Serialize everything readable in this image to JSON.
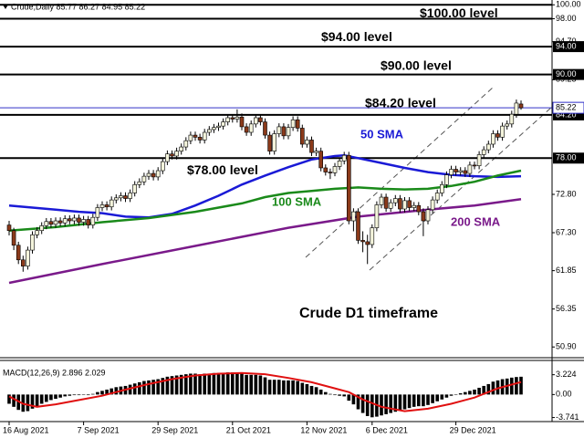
{
  "chart_data": {
    "type": "candlestick",
    "title": "Crude,Daily 85.77 86.27 84.95 85.22",
    "ylim": [
      49.36,
      100.69
    ],
    "yticks": [
      {
        "value": 100,
        "label": "100.00"
      },
      {
        "value": 98,
        "label": "98.00"
      },
      {
        "value": 94.7,
        "label": "94.70"
      },
      {
        "value": 89.25,
        "label": "89.25"
      },
      {
        "value": 72.8,
        "label": "72.80"
      },
      {
        "value": 67.3,
        "label": "67.30"
      },
      {
        "value": 61.85,
        "label": "61.85"
      },
      {
        "value": 56.35,
        "label": "56.35"
      },
      {
        "value": 50.9,
        "label": "50.90"
      }
    ],
    "xticks": [
      {
        "value": 0,
        "label": "16 Aug 2021"
      },
      {
        "value": 16,
        "label": "7 Sep 2021"
      },
      {
        "value": 32,
        "label": "29 Sep 2021"
      },
      {
        "value": 48,
        "label": "21 Oct 2021"
      },
      {
        "value": 64,
        "label": "12 Nov 2021"
      },
      {
        "value": 78,
        "label": "6 Dec 2021"
      },
      {
        "value": 96,
        "label": "29 Dec 2021"
      }
    ],
    "up_color": "#f4f4dc",
    "down_color": "#8b3a1a",
    "ohlc": [
      [
        68.4,
        69.0,
        66.9,
        67.6
      ],
      [
        67.6,
        68.0,
        64.8,
        65.5
      ],
      [
        65.5,
        66.0,
        62.8,
        63.4
      ],
      [
        63.4,
        64.0,
        61.7,
        62.5
      ],
      [
        62.5,
        65.3,
        62.0,
        64.8
      ],
      [
        64.8,
        67.5,
        64.3,
        67.0
      ],
      [
        67.0,
        68.1,
        66.5,
        67.6
      ],
      [
        67.6,
        68.8,
        67.1,
        68.3
      ],
      [
        68.3,
        69.4,
        67.8,
        68.9
      ],
      [
        68.9,
        69.4,
        68.0,
        68.5
      ],
      [
        68.5,
        69.5,
        68.0,
        69.0
      ],
      [
        69.0,
        69.5,
        68.2,
        68.7
      ],
      [
        68.7,
        69.8,
        68.2,
        69.3
      ],
      [
        69.3,
        69.8,
        68.5,
        69.0
      ],
      [
        69.0,
        69.9,
        68.5,
        69.4
      ],
      [
        69.4,
        69.9,
        68.3,
        68.8
      ],
      [
        68.8,
        69.7,
        68.3,
        69.2
      ],
      [
        69.2,
        69.7,
        67.9,
        68.4
      ],
      [
        68.4,
        70.0,
        67.9,
        69.5
      ],
      [
        69.5,
        71.4,
        69.0,
        70.9
      ],
      [
        70.9,
        71.8,
        70.4,
        71.3
      ],
      [
        71.3,
        71.8,
        70.5,
        71.0
      ],
      [
        71.0,
        72.5,
        70.5,
        72.0
      ],
      [
        72.0,
        72.8,
        71.5,
        72.3
      ],
      [
        72.3,
        73.1,
        71.8,
        72.6
      ],
      [
        72.6,
        73.1,
        71.7,
        72.2
      ],
      [
        72.2,
        73.5,
        71.7,
        73.0
      ],
      [
        73.0,
        74.7,
        72.5,
        74.2
      ],
      [
        74.2,
        75.1,
        73.7,
        74.6
      ],
      [
        74.6,
        75.9,
        74.1,
        75.4
      ],
      [
        75.4,
        76.3,
        74.9,
        75.8
      ],
      [
        75.8,
        76.3,
        74.8,
        75.3
      ],
      [
        75.3,
        76.7,
        74.8,
        76.2
      ],
      [
        76.2,
        78.0,
        75.7,
        77.5
      ],
      [
        77.5,
        79.1,
        77.0,
        78.6
      ],
      [
        78.6,
        79.1,
        77.8,
        78.3
      ],
      [
        78.3,
        79.5,
        77.8,
        79.0
      ],
      [
        79.0,
        80.1,
        78.5,
        79.6
      ],
      [
        79.6,
        81.0,
        79.1,
        80.5
      ],
      [
        80.5,
        81.8,
        80.0,
        81.3
      ],
      [
        81.3,
        81.8,
        80.5,
        81.0
      ],
      [
        81.0,
        81.5,
        80.1,
        80.6
      ],
      [
        80.6,
        82.2,
        80.1,
        81.7
      ],
      [
        81.7,
        82.6,
        81.2,
        82.1
      ],
      [
        82.1,
        82.9,
        81.6,
        82.4
      ],
      [
        82.4,
        83.1,
        81.9,
        82.6
      ],
      [
        82.6,
        83.7,
        82.1,
        83.2
      ],
      [
        83.2,
        84.3,
        82.7,
        83.8
      ],
      [
        83.8,
        84.3,
        83.1,
        83.6
      ],
      [
        83.6,
        85.0,
        83.1,
        83.9
      ],
      [
        83.9,
        84.4,
        82.0,
        82.5
      ],
      [
        82.5,
        83.0,
        81.2,
        81.7
      ],
      [
        81.7,
        83.4,
        81.2,
        82.9
      ],
      [
        82.9,
        84.3,
        82.4,
        83.8
      ],
      [
        83.8,
        84.3,
        82.7,
        83.2
      ],
      [
        83.2,
        83.7,
        80.8,
        81.3
      ],
      [
        81.3,
        81.8,
        78.5,
        79.0
      ],
      [
        79.0,
        82.0,
        78.5,
        81.5
      ],
      [
        81.5,
        83.0,
        81.0,
        82.5
      ],
      [
        82.5,
        83.0,
        80.7,
        81.2
      ],
      [
        81.2,
        82.9,
        80.7,
        82.4
      ],
      [
        82.4,
        84.0,
        81.9,
        83.5
      ],
      [
        83.5,
        84.0,
        81.8,
        82.3
      ],
      [
        82.3,
        82.8,
        79.5,
        80.0
      ],
      [
        80.0,
        81.1,
        79.5,
        80.6
      ],
      [
        80.6,
        81.1,
        78.3,
        78.8
      ],
      [
        78.8,
        79.5,
        78.3,
        79.0
      ],
      [
        79.0,
        79.5,
        76.1,
        76.6
      ],
      [
        76.6,
        77.1,
        75.5,
        76.0
      ],
      [
        76.0,
        76.5,
        75.0,
        75.9
      ],
      [
        75.9,
        77.3,
        75.4,
        76.8
      ],
      [
        76.8,
        78.1,
        76.3,
        77.6
      ],
      [
        77.6,
        78.9,
        77.1,
        78.4
      ],
      [
        78.4,
        78.9,
        68.5,
        69.0
      ],
      [
        69.0,
        70.8,
        67.5,
        70.3
      ],
      [
        70.3,
        70.8,
        65.7,
        66.2
      ],
      [
        66.2,
        67.5,
        64.5,
        66.0
      ],
      [
        66.0,
        67.0,
        62.8,
        65.6
      ],
      [
        65.6,
        68.5,
        65.1,
        68.0
      ],
      [
        68.0,
        71.8,
        67.5,
        71.3
      ],
      [
        71.3,
        72.9,
        70.8,
        72.4
      ],
      [
        72.4,
        72.9,
        70.3,
        70.8
      ],
      [
        70.8,
        72.1,
        70.3,
        71.6
      ],
      [
        71.6,
        72.7,
        71.1,
        72.2
      ],
      [
        72.2,
        72.7,
        70.2,
        70.7
      ],
      [
        70.7,
        72.4,
        70.2,
        71.9
      ],
      [
        71.9,
        72.4,
        70.4,
        70.9
      ],
      [
        70.9,
        71.7,
        70.4,
        71.2
      ],
      [
        71.2,
        71.7,
        69.8,
        70.3
      ],
      [
        70.3,
        70.8,
        66.8,
        69.0
      ],
      [
        69.0,
        71.1,
        68.5,
        70.6
      ],
      [
        70.6,
        72.5,
        70.1,
        72.0
      ],
      [
        72.0,
        73.5,
        71.5,
        73.0
      ],
      [
        73.0,
        74.7,
        72.5,
        74.2
      ],
      [
        74.2,
        76.1,
        73.7,
        75.6
      ],
      [
        75.6,
        76.9,
        75.1,
        76.4
      ],
      [
        76.4,
        76.9,
        75.5,
        76.0
      ],
      [
        76.0,
        76.7,
        75.5,
        76.2
      ],
      [
        76.2,
        76.7,
        75.3,
        75.8
      ],
      [
        75.8,
        77.5,
        75.3,
        77.0
      ],
      [
        77.0,
        77.5,
        76.4,
        76.9
      ],
      [
        76.9,
        79.0,
        76.4,
        78.5
      ],
      [
        78.5,
        79.7,
        78.0,
        79.2
      ],
      [
        79.2,
        80.5,
        78.7,
        80.0
      ],
      [
        80.0,
        82.0,
        79.5,
        81.5
      ],
      [
        81.5,
        82.0,
        80.5,
        81.0
      ],
      [
        81.0,
        83.1,
        80.5,
        82.6
      ],
      [
        82.6,
        83.4,
        82.1,
        82.9
      ],
      [
        82.9,
        84.8,
        82.4,
        84.3
      ],
      [
        84.3,
        86.4,
        83.8,
        85.9
      ],
      [
        85.77,
        86.27,
        84.95,
        85.22
      ]
    ],
    "series": [
      {
        "name": "50 SMA",
        "color": "#1a1ad6",
        "x": [
          0,
          5,
          10,
          15,
          20,
          25,
          30,
          35,
          40,
          45,
          50,
          55,
          60,
          65,
          70,
          72,
          75,
          80,
          85,
          90,
          95,
          100,
          105,
          110
        ],
        "values": [
          71.2,
          70.9,
          70.6,
          70.3,
          70.1,
          69.6,
          69.5,
          70.0,
          71.2,
          72.6,
          74.2,
          75.5,
          76.7,
          77.8,
          78.3,
          78.4,
          78.0,
          77.3,
          76.6,
          76.0,
          75.6,
          75.4,
          75.3,
          75.4
        ]
      },
      {
        "name": "100 SMA",
        "color": "#1a8a1a",
        "x": [
          0,
          10,
          20,
          30,
          40,
          50,
          55,
          60,
          65,
          70,
          75,
          80,
          85,
          90,
          95,
          100,
          105,
          110
        ],
        "values": [
          67.6,
          68.1,
          68.8,
          69.4,
          70.3,
          71.5,
          72.4,
          73.0,
          73.3,
          73.6,
          73.8,
          73.6,
          73.5,
          73.6,
          74.0,
          74.6,
          75.5,
          76.2
        ]
      },
      {
        "name": "200 SMA",
        "color": "#7a1a8a",
        "x": [
          0,
          20,
          40,
          60,
          75,
          90,
          100,
          110
        ],
        "values": [
          60.1,
          62.8,
          65.4,
          68.0,
          69.6,
          70.6,
          71.2,
          72.1
        ]
      }
    ],
    "levels": [
      {
        "value": 100,
        "label": "$100.00 level"
      },
      {
        "value": 98
      },
      {
        "value": 94,
        "label": "$94.00 level",
        "axis_label": "94.00"
      },
      {
        "value": 90,
        "label": "$90.00 level",
        "axis_label": "90.00"
      },
      {
        "value": 84.2,
        "label": "$84.20 level",
        "axis_label": "84.20"
      },
      {
        "value": 78,
        "label": "$78.00 level",
        "axis_label": "78.00"
      }
    ],
    "last_price": {
      "value": 85.22,
      "label": "85.22",
      "color": "#3030c8"
    },
    "annotation": "Crude D1 timeframe",
    "macd": {
      "title": "MACD(12,26,9) 2.896 2.029",
      "ylim": [
        -4.4,
        5.4
      ],
      "yticks": [
        3.224,
        {
          "value": 0,
          "label": "0.00"
        },
        -3.741
      ],
      "values": [
        -1.5,
        -2.0,
        -2.5,
        -2.8,
        -2.7,
        -2.3,
        -1.9,
        -1.5,
        -1.2,
        -0.9,
        -0.7,
        -0.5,
        -0.3,
        -0.2,
        -0.1,
        -0.1,
        0.0,
        -0.1,
        0.1,
        0.4,
        0.6,
        0.8,
        1.0,
        1.2,
        1.3,
        1.4,
        1.6,
        1.8,
        2.0,
        2.2,
        2.3,
        2.4,
        2.5,
        2.7,
        2.9,
        3.0,
        3.1,
        3.2,
        3.3,
        3.4,
        3.4,
        3.3,
        3.4,
        3.4,
        3.5,
        3.5,
        3.5,
        3.6,
        3.6,
        3.6,
        3.4,
        3.2,
        3.2,
        3.2,
        3.1,
        2.8,
        2.4,
        2.4,
        2.4,
        2.3,
        2.3,
        2.3,
        2.2,
        1.9,
        1.7,
        1.4,
        1.2,
        0.8,
        0.4,
        0.1,
        -0.1,
        -0.2,
        -0.3,
        -1.0,
        -1.6,
        -2.4,
        -3.0,
        -3.5,
        -3.7,
        -3.6,
        -3.4,
        -3.2,
        -3.0,
        -2.8,
        -2.6,
        -2.4,
        -2.2,
        -2.0,
        -1.9,
        -1.9,
        -1.7,
        -1.4,
        -1.1,
        -0.8,
        -0.5,
        -0.2,
        0.0,
        0.2,
        0.4,
        0.6,
        0.8,
        1.1,
        1.4,
        1.7,
        2.1,
        2.3,
        2.5,
        2.6,
        2.75,
        2.85,
        2.896
      ],
      "color": "#000000",
      "signal": {
        "color": "#e01010",
        "x": [
          0,
          3,
          6,
          10,
          15,
          20,
          25,
          30,
          35,
          40,
          45,
          50,
          55,
          60,
          65,
          70,
          73,
          76,
          80,
          85,
          90,
          95,
          100,
          105,
          110
        ],
        "values": [
          -0.3,
          -1.5,
          -2.0,
          -1.6,
          -0.9,
          -0.2,
          0.8,
          1.7,
          2.5,
          3.1,
          3.4,
          3.5,
          3.3,
          2.7,
          2.0,
          1.0,
          0.4,
          -0.8,
          -2.0,
          -2.7,
          -2.3,
          -1.5,
          -0.5,
          1.0,
          2.029
        ]
      }
    }
  }
}
